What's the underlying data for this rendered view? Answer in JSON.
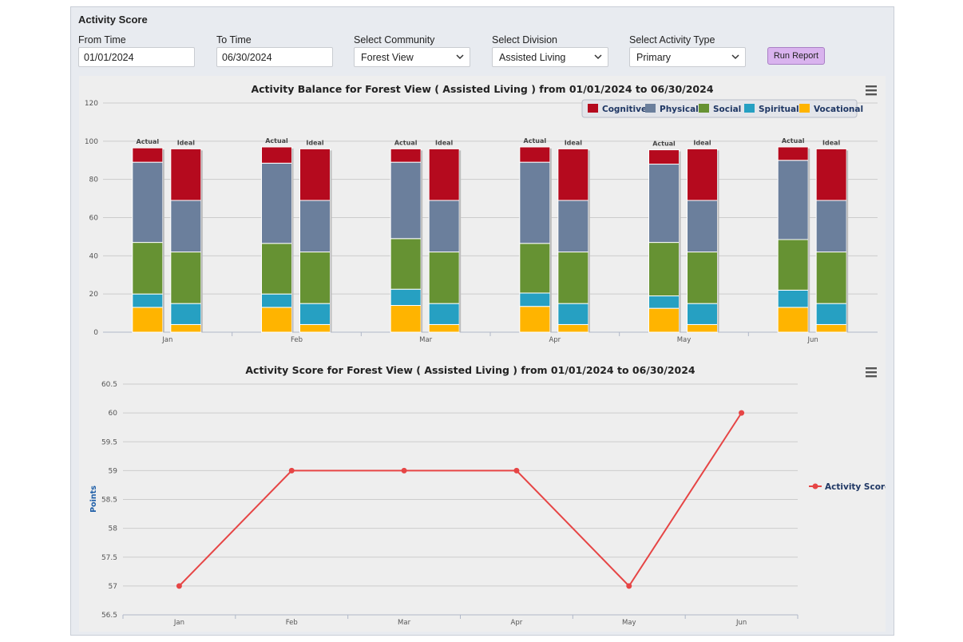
{
  "panel": {
    "title": "Activity Score"
  },
  "filters": {
    "from_time": {
      "label": "From Time",
      "value": "01/01/2024"
    },
    "to_time": {
      "label": "To Time",
      "value": "06/30/2024"
    },
    "community": {
      "label": "Select Community",
      "value": "Forest View"
    },
    "division": {
      "label": "Select Division",
      "value": "Assisted Living"
    },
    "activity_type": {
      "label": "Select Activity Type",
      "value": "Primary"
    },
    "run_label": "Run Report"
  },
  "colors": {
    "Cognitive": "#b50a1e",
    "Physical": "#6b7f9c",
    "Social": "#669233",
    "Spiritual": "#26a0c2",
    "Vocational": "#ffb400",
    "line": "#e64545"
  },
  "chart_data": [
    {
      "type": "bar",
      "stacked": true,
      "title": "Activity Balance for Forest View ( Assisted Living ) from 01/01/2024 to 06/30/2024",
      "categories": [
        "Jan",
        "Feb",
        "Mar",
        "Apr",
        "May",
        "Jun"
      ],
      "stack_labels": [
        "Actual",
        "Ideal"
      ],
      "ylim": [
        0,
        120
      ],
      "yticks": [
        0,
        20,
        40,
        60,
        80,
        100,
        120
      ],
      "legend": [
        "Cognitive",
        "Physical",
        "Social",
        "Spiritual",
        "Vocational"
      ],
      "legend_position": "top-right",
      "series": [
        {
          "name": "Vocational",
          "actual": [
            13,
            13,
            14,
            13.5,
            12.5,
            13
          ],
          "ideal": [
            4,
            4,
            4,
            4,
            4,
            4
          ]
        },
        {
          "name": "Spiritual",
          "actual": [
            7,
            7,
            8.5,
            7,
            6.5,
            9
          ],
          "ideal": [
            11,
            11,
            11,
            11,
            11,
            11
          ]
        },
        {
          "name": "Social",
          "actual": [
            27,
            26.5,
            26.5,
            26,
            28,
            26.5
          ],
          "ideal": [
            27,
            27,
            27,
            27,
            27,
            27
          ]
        },
        {
          "name": "Physical",
          "actual": [
            42,
            42,
            40,
            42.5,
            41,
            41.5
          ],
          "ideal": [
            27,
            27,
            27,
            27,
            27,
            27
          ]
        },
        {
          "name": "Cognitive",
          "actual": [
            7.5,
            8.5,
            7,
            8,
            7.5,
            7
          ],
          "ideal": [
            27,
            27,
            27,
            27,
            27,
            27
          ]
        }
      ]
    },
    {
      "type": "line",
      "title": "Activity Score for Forest View ( Assisted Living ) from 01/01/2024 to 06/30/2024",
      "categories": [
        "Jan",
        "Feb",
        "Mar",
        "Apr",
        "May",
        "Jun"
      ],
      "ylabel": "Points",
      "ylim": [
        56.5,
        60.5
      ],
      "yticks": [
        56.5,
        57,
        57.5,
        58,
        58.5,
        59,
        59.5,
        60,
        60.5
      ],
      "legend_position": "right",
      "series": [
        {
          "name": "Activity Score",
          "values": [
            57,
            59,
            59,
            59,
            57,
            60
          ]
        }
      ]
    }
  ]
}
